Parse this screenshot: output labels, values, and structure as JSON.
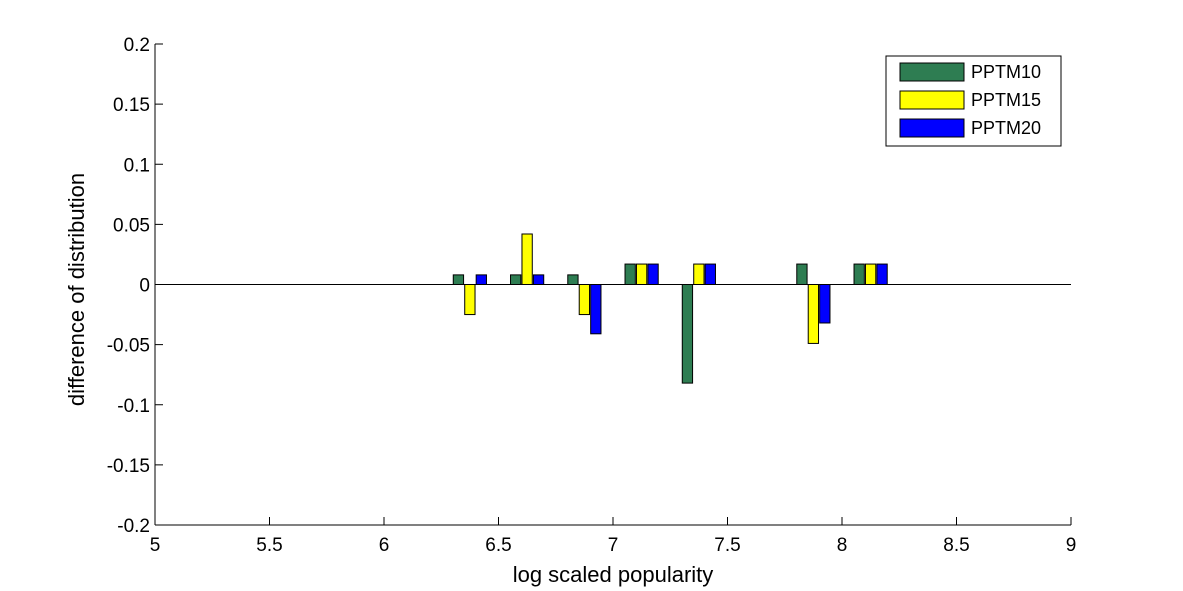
{
  "chart_data": {
    "type": "bar",
    "title": "",
    "xlabel": "log scaled popularity",
    "ylabel": "difference of distribution",
    "xlim": [
      5,
      9
    ],
    "ylim": [
      -0.2,
      0.2
    ],
    "xticks": [
      "5",
      "5.5",
      "6",
      "6.5",
      "7",
      "7.5",
      "8",
      "8.5",
      "9"
    ],
    "yticks": [
      "0.2",
      "0.15",
      "0.1",
      "0.05",
      "0",
      "-0.05",
      "-0.1",
      "-0.15",
      "-0.2"
    ],
    "x": [
      6.375,
      6.625,
      6.875,
      7.125,
      7.375,
      7.875,
      8.125
    ],
    "series": [
      {
        "name": "PPTM10",
        "color": "#2e7d52",
        "values": [
          0.008,
          0.008,
          0.008,
          0.017,
          -0.082,
          0.017,
          0.017
        ]
      },
      {
        "name": "PPTM15",
        "color": "#ffff00",
        "values": [
          -0.025,
          0.042,
          -0.025,
          0.017,
          0.017,
          -0.049,
          0.017
        ]
      },
      {
        "name": "PPTM20",
        "color": "#0000ff",
        "values": [
          0.008,
          0.008,
          -0.041,
          0.017,
          0.017,
          -0.032,
          0.017
        ]
      }
    ],
    "grid": false,
    "legend_position": "top-right"
  }
}
